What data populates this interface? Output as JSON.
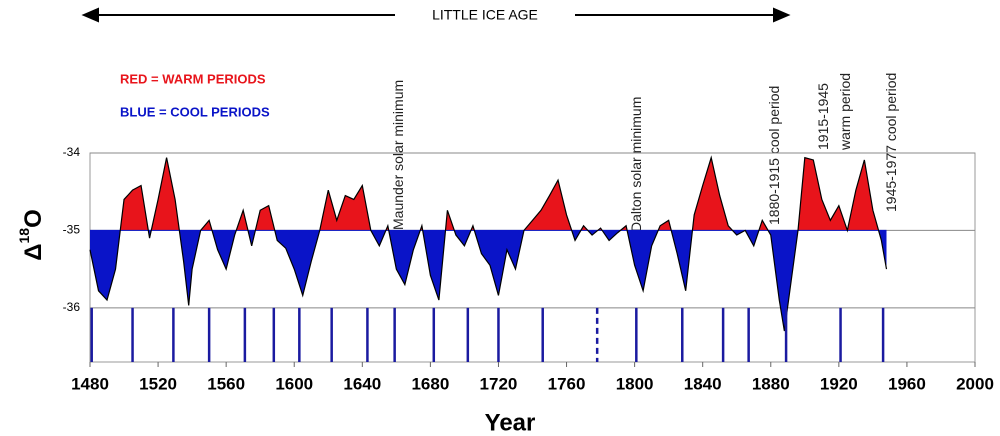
{
  "chart_data": {
    "type": "area",
    "top_label": "LITTLE ICE AGE",
    "legend_texts": [
      "RED = WARM PERIODS",
      "BLUE = COOL PERIODS"
    ],
    "annotations": [
      "Maunder solar  minimum",
      "Dalton solar minimum",
      "1880-1915 cool period",
      "1915-1945",
      "warm period",
      "1945-1977 cool period"
    ],
    "y_label": {
      "symbol": "Δ",
      "superscript": "18",
      "letter": "O"
    },
    "x_label": "Year",
    "x": [
      1480,
      1485,
      1490,
      1495,
      1500,
      1505,
      1510,
      1515,
      1520,
      1525,
      1530,
      1535,
      1538,
      1540,
      1545,
      1550,
      1555,
      1560,
      1565,
      1570,
      1575,
      1580,
      1585,
      1590,
      1595,
      1600,
      1605,
      1610,
      1615,
      1620,
      1625,
      1630,
      1635,
      1640,
      1645,
      1650,
      1655,
      1660,
      1665,
      1670,
      1675,
      1680,
      1685,
      1690,
      1695,
      1700,
      1705,
      1710,
      1715,
      1720,
      1725,
      1730,
      1735,
      1740,
      1745,
      1750,
      1755,
      1760,
      1765,
      1770,
      1775,
      1780,
      1785,
      1790,
      1795,
      1800,
      1805,
      1810,
      1815,
      1820,
      1825,
      1830,
      1835,
      1840,
      1845,
      1850,
      1855,
      1860,
      1865,
      1870,
      1875,
      1880,
      1885,
      1888,
      1892,
      1896,
      1900,
      1905,
      1910,
      1915,
      1920,
      1925,
      1930,
      1935,
      1940,
      1945,
      1948
    ],
    "values": [
      -35.25,
      -35.78,
      -35.9,
      -35.5,
      -34.6,
      -34.48,
      -34.42,
      -35.1,
      -34.6,
      -34.06,
      -34.6,
      -35.4,
      -35.97,
      -35.5,
      -35,
      -34.87,
      -35.25,
      -35.5,
      -35.06,
      -34.74,
      -35.2,
      -34.74,
      -34.68,
      -35.13,
      -35.23,
      -35.5,
      -35.84,
      -35.4,
      -35,
      -34.48,
      -34.87,
      -34.55,
      -34.6,
      -34.42,
      -35,
      -35.2,
      -34.94,
      -35.5,
      -35.7,
      -35.25,
      -34.94,
      -35.58,
      -35.9,
      -34.74,
      -35.06,
      -35.2,
      -34.94,
      -35.3,
      -35.45,
      -35.84,
      -35.25,
      -35.5,
      -35,
      -34.87,
      -34.74,
      -34.55,
      -34.35,
      -34.8,
      -35.13,
      -34.94,
      -35.06,
      -34.97,
      -35.13,
      -35.03,
      -34.94,
      -35.45,
      -35.78,
      -35.2,
      -34.94,
      -34.87,
      -35.3,
      -35.78,
      -34.8,
      -34.42,
      -34.06,
      -34.55,
      -34.94,
      -35.06,
      -35,
      -35.2,
      -34.87,
      -35.06,
      -35.9,
      -36.3,
      -35.65,
      -35,
      -34.06,
      -34.09,
      -34.6,
      -34.87,
      -34.68,
      -35,
      -34.48,
      -34.09,
      -34.74,
      -35.13,
      -35.5
    ],
    "baseline": -35,
    "colors": {
      "above": "#e8141b",
      "below": "#0a14c8",
      "line": "#000000",
      "markers": "#1a1aa0"
    },
    "markers": [
      1481,
      1505,
      1529,
      1550,
      1571,
      1588,
      1603,
      1622,
      1643,
      1659,
      1682,
      1702,
      1720,
      1746,
      1801,
      1828,
      1852,
      1867,
      1889,
      1921,
      1946
    ],
    "dashed_markers": [
      1778
    ],
    "xlim": [
      1480,
      2000
    ],
    "xticks": [
      1480,
      1520,
      1560,
      1600,
      1640,
      1680,
      1720,
      1760,
      1800,
      1840,
      1880,
      1920,
      1960,
      2000
    ],
    "ylim": [
      -36.7,
      -34
    ],
    "yticks": [
      -34,
      -35,
      -36
    ],
    "grid": true
  }
}
